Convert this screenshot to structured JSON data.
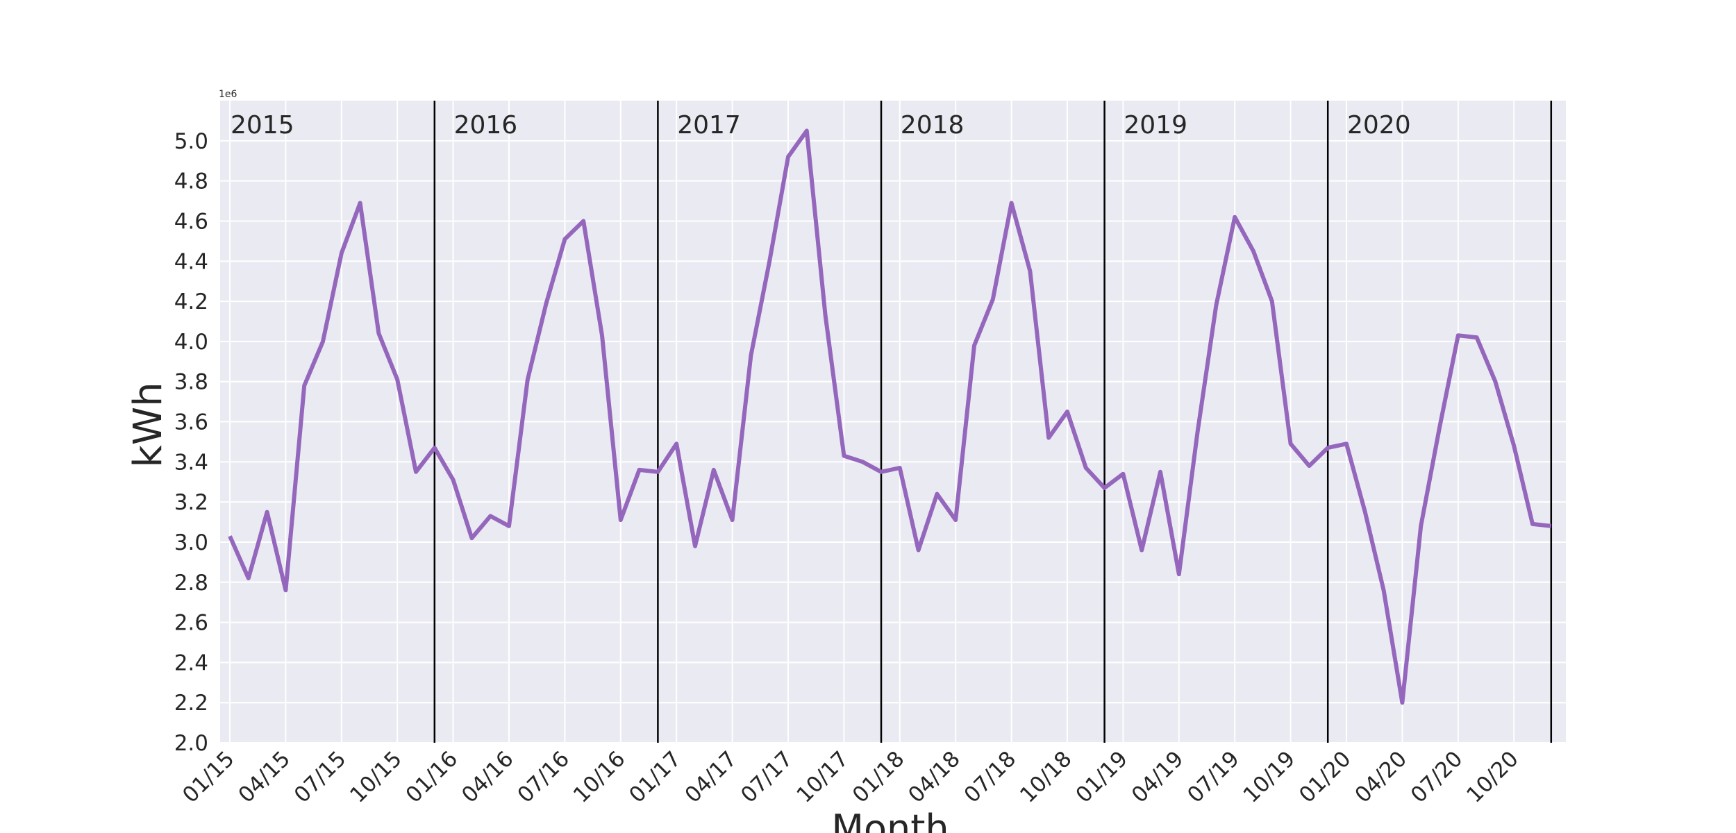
{
  "chart_data": {
    "type": "line",
    "title": "",
    "xlabel": "Month",
    "ylabel": "kWh",
    "y_offset_label": "1e6",
    "ylim": [
      2.0,
      5.2
    ],
    "yticks": [
      "2.0",
      "2.2",
      "2.4",
      "2.6",
      "2.8",
      "3.0",
      "3.2",
      "3.4",
      "3.6",
      "3.8",
      "4.0",
      "4.2",
      "4.4",
      "4.6",
      "4.8",
      "5.0"
    ],
    "ytick_values": [
      2.0,
      2.2,
      2.4,
      2.6,
      2.8,
      3.0,
      3.2,
      3.4,
      3.6,
      3.8,
      4.0,
      4.2,
      4.4,
      4.6,
      4.8,
      5.0
    ],
    "xtick_labels": [
      "01/15",
      "04/15",
      "07/15",
      "10/15",
      "01/16",
      "04/16",
      "07/16",
      "10/16",
      "01/17",
      "04/17",
      "07/17",
      "10/17",
      "01/18",
      "04/18",
      "07/18",
      "10/18",
      "01/19",
      "04/19",
      "07/19",
      "10/19",
      "01/20",
      "04/20",
      "07/20",
      "10/20"
    ],
    "year_labels": [
      "2015",
      "2016",
      "2017",
      "2018",
      "2019",
      "2020"
    ],
    "grid": true,
    "line_color": "#9467bd",
    "series": [
      {
        "x": [
          "01/15",
          "02/15",
          "03/15",
          "04/15",
          "05/15",
          "06/15",
          "07/15",
          "08/15",
          "09/15",
          "10/15",
          "11/15",
          "12/15",
          "01/16",
          "02/16",
          "03/16",
          "04/16",
          "05/16",
          "06/16",
          "07/16",
          "08/16",
          "09/16",
          "10/16",
          "11/16",
          "12/16",
          "01/17",
          "02/17",
          "03/17",
          "04/17",
          "05/17",
          "06/17",
          "07/17",
          "08/17",
          "09/17",
          "10/17",
          "11/17",
          "12/17",
          "01/18",
          "02/18",
          "03/18",
          "04/18",
          "05/18",
          "06/18",
          "07/18",
          "08/18",
          "09/18",
          "10/18",
          "11/18",
          "12/18",
          "01/19",
          "02/19",
          "03/19",
          "04/19",
          "05/19",
          "06/19",
          "07/19",
          "08/19",
          "09/19",
          "10/19",
          "11/19",
          "12/19",
          "01/20",
          "02/20",
          "03/20",
          "04/20",
          "05/20",
          "06/20",
          "07/20",
          "08/20",
          "09/20",
          "10/20",
          "11/20",
          "12/20"
        ],
        "values": [
          3.03,
          2.82,
          3.15,
          2.76,
          3.78,
          4.0,
          4.44,
          4.69,
          4.04,
          3.81,
          3.35,
          3.47,
          3.31,
          3.02,
          3.13,
          3.08,
          3.81,
          4.19,
          4.51,
          4.6,
          4.03,
          3.11,
          3.36,
          3.35,
          3.49,
          2.98,
          3.36,
          3.11,
          3.93,
          4.4,
          4.92,
          5.05,
          4.13,
          3.43,
          3.4,
          3.35,
          3.37,
          2.96,
          3.24,
          3.11,
          3.98,
          4.21,
          4.69,
          4.35,
          3.52,
          3.65,
          3.37,
          3.27,
          3.34,
          2.96,
          3.35,
          2.84,
          3.55,
          4.18,
          4.62,
          4.45,
          4.2,
          3.49,
          3.38,
          3.47,
          3.49,
          3.15,
          2.76,
          2.2,
          3.08,
          3.57,
          4.03,
          4.02,
          3.8,
          3.48,
          3.09,
          3.08
        ]
      }
    ]
  }
}
